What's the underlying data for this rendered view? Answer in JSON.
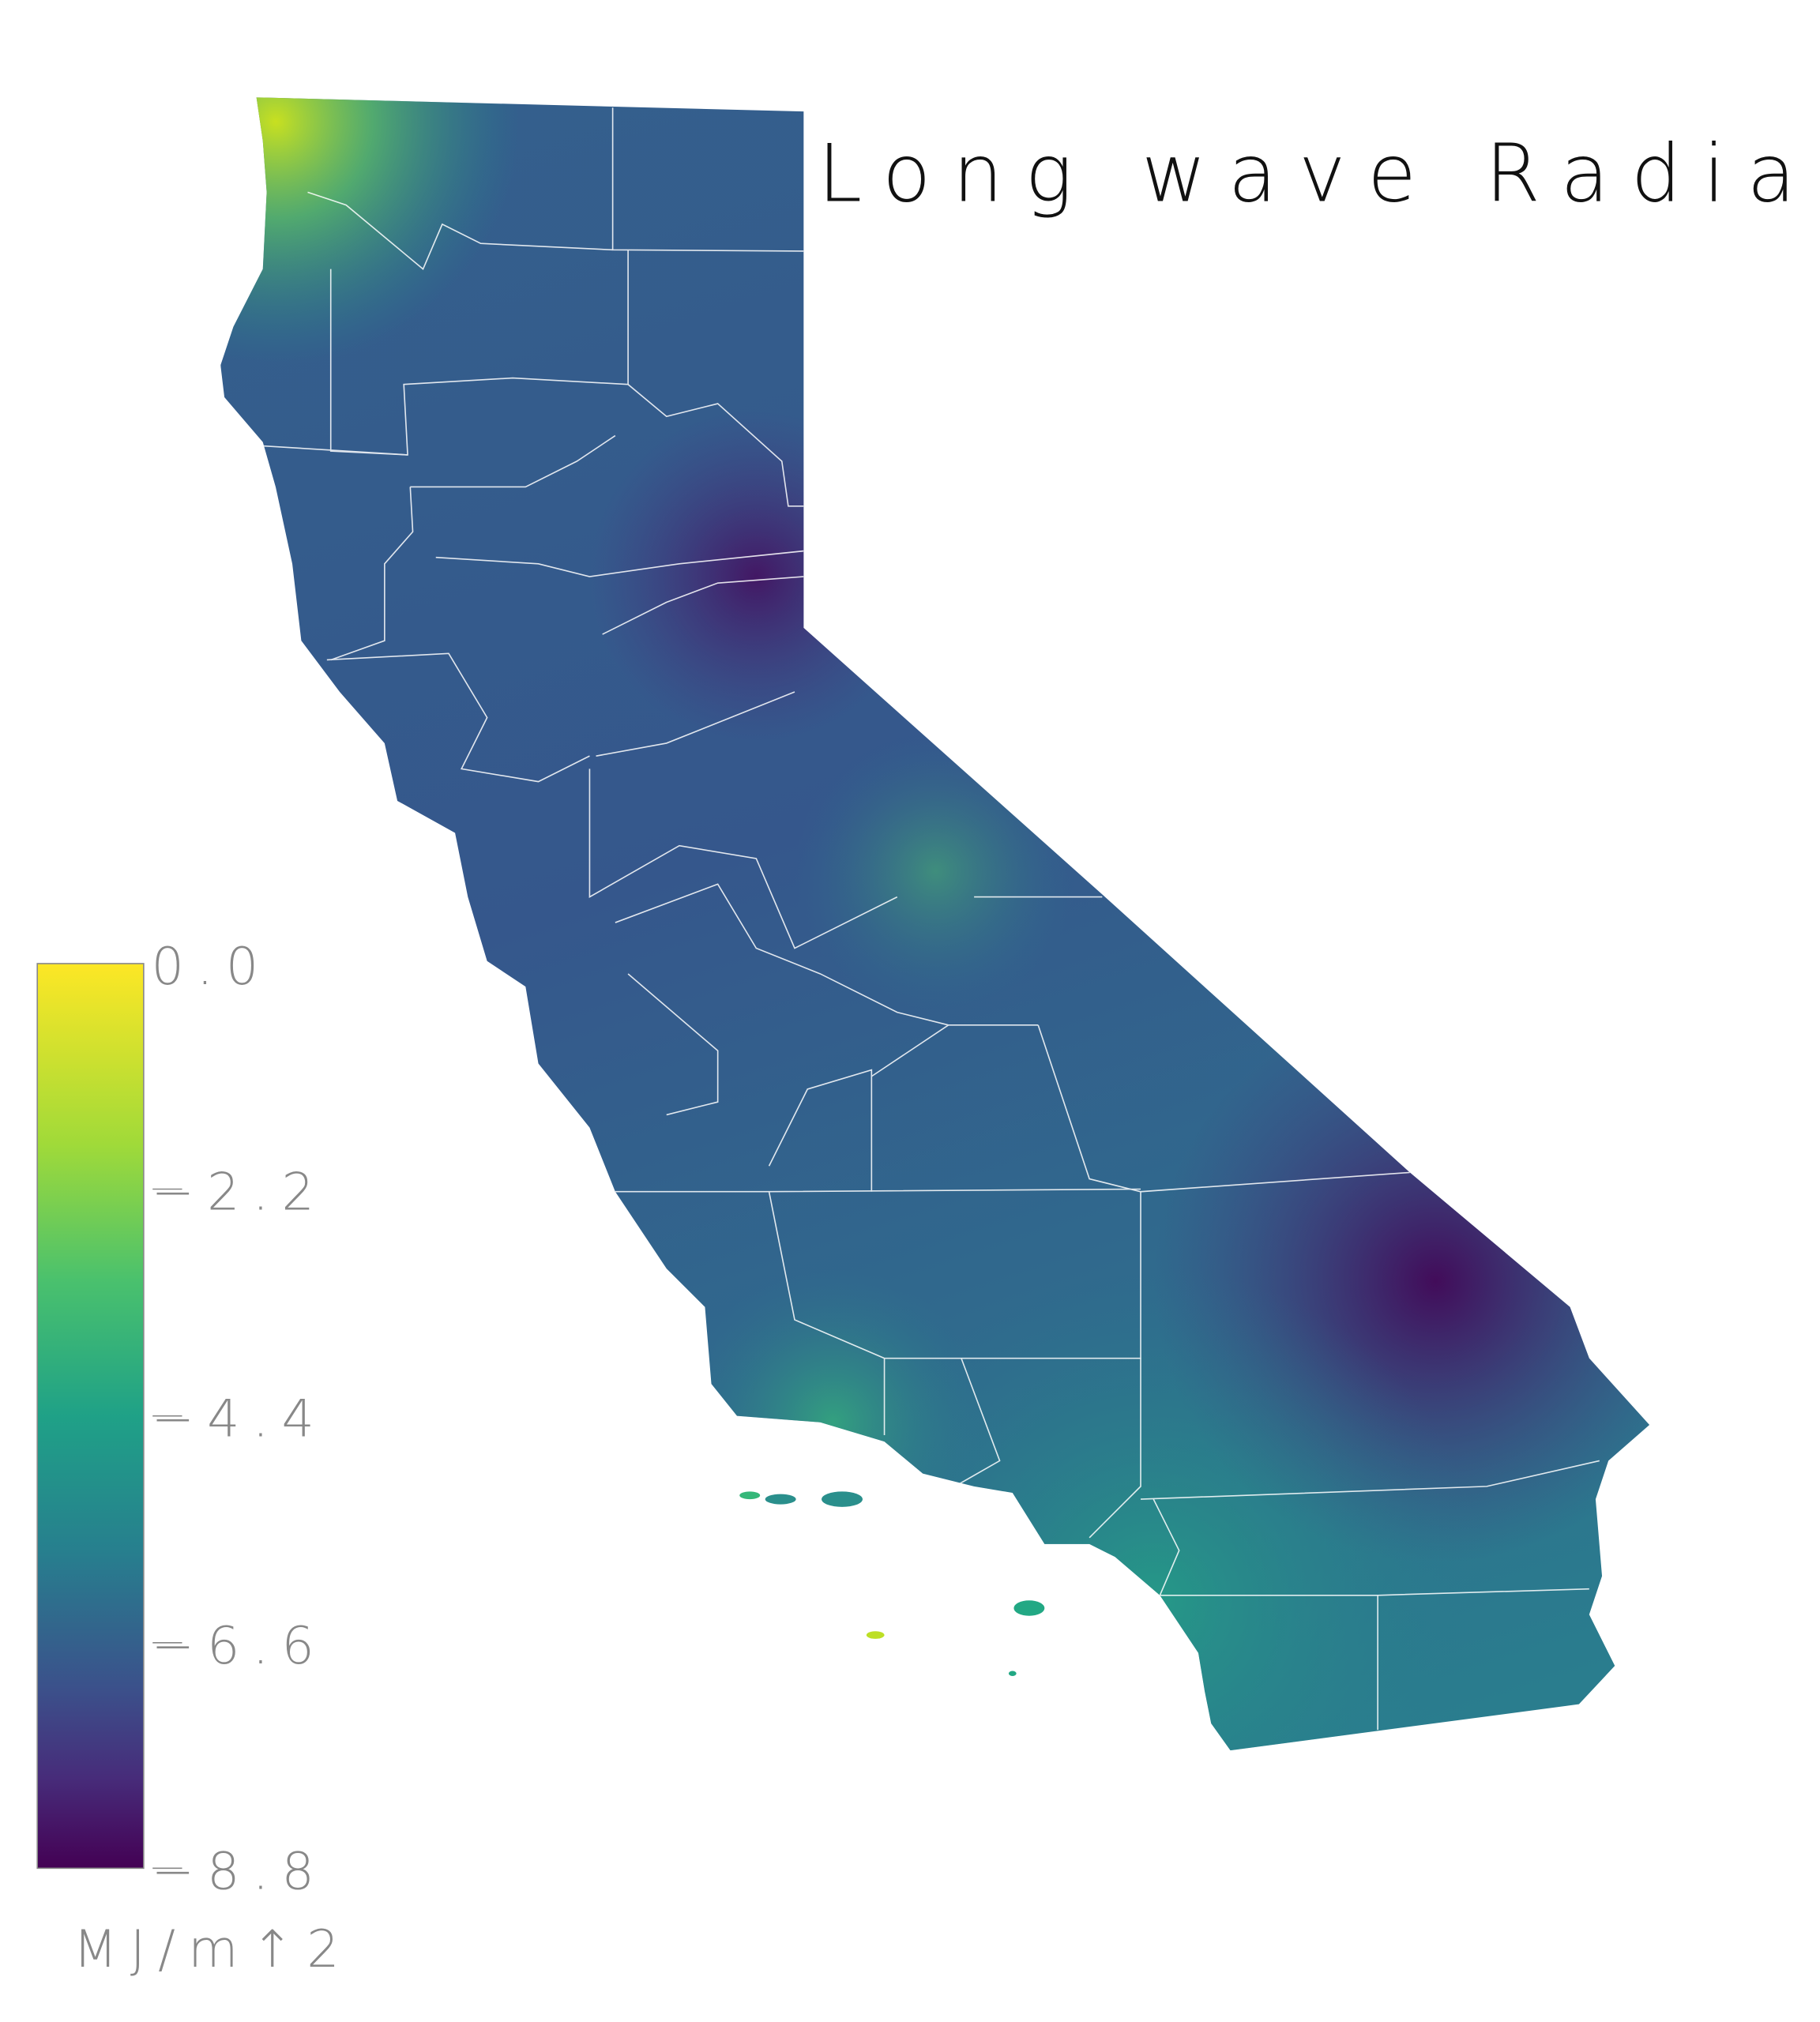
{
  "title": "Long wave Radiation",
  "legend": {
    "ticks": [
      "0.0",
      "−2.2",
      "−4.4",
      "−6.6",
      "−8.8"
    ],
    "tick_values": [
      0.0,
      -2.2,
      -4.4,
      -6.6,
      -8.8
    ],
    "unit": "MJ/m↑2",
    "colormap": "viridis",
    "colors": [
      "#fde725",
      "#7ad151",
      "#22a884",
      "#2a788e",
      "#414487",
      "#440154"
    ]
  },
  "map": {
    "region": "California",
    "borders_color": "#ffffff"
  }
}
